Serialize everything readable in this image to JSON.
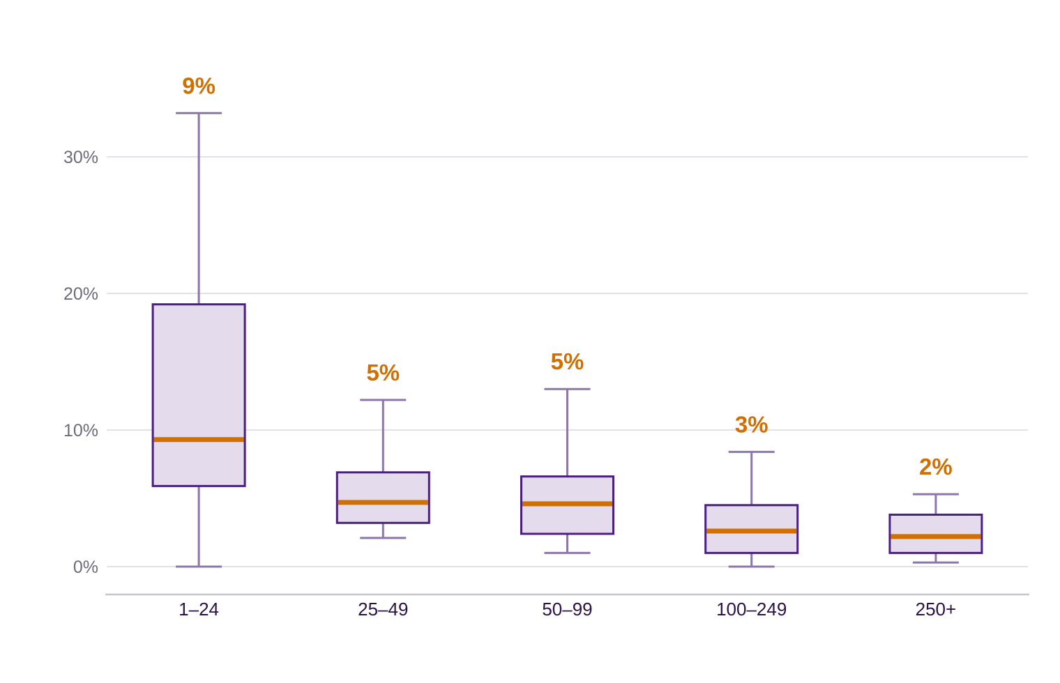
{
  "chart_data": {
    "type": "boxplot",
    "categories": [
      "1–24",
      "25–49",
      "50–99",
      "100–249",
      "250+"
    ],
    "boxes": [
      {
        "category": "1–24",
        "whisker_low": 0.0,
        "q1": 5.9,
        "median": 9.3,
        "q3": 19.2,
        "whisker_high": 33.2,
        "label": "9%"
      },
      {
        "category": "25–49",
        "whisker_low": 2.1,
        "q1": 3.2,
        "median": 4.7,
        "q3": 6.9,
        "whisker_high": 12.2,
        "label": "5%"
      },
      {
        "category": "50–99",
        "whisker_low": 1.0,
        "q1": 2.4,
        "median": 4.6,
        "q3": 6.6,
        "whisker_high": 13.0,
        "label": "5%"
      },
      {
        "category": "100–249",
        "whisker_low": 0.0,
        "q1": 1.0,
        "median": 2.6,
        "q3": 4.5,
        "whisker_high": 8.4,
        "label": "3%"
      },
      {
        "category": "250+",
        "whisker_low": 0.3,
        "q1": 1.0,
        "median": 2.2,
        "q3": 3.8,
        "whisker_high": 5.3,
        "label": "2%"
      }
    ],
    "y_ticks": [
      0,
      10,
      20,
      30
    ],
    "y_tick_labels": [
      "0%",
      "10%",
      "20%",
      "30%"
    ],
    "ylim": [
      -2,
      35
    ],
    "grid": true,
    "colors": {
      "box_fill": "#e4dcec",
      "box_stroke": "#4a1f7e",
      "whisker": "#8b78a8",
      "median": "#d07000",
      "gridline": "#e3e1e8",
      "axis": "#c8c4d0"
    }
  }
}
